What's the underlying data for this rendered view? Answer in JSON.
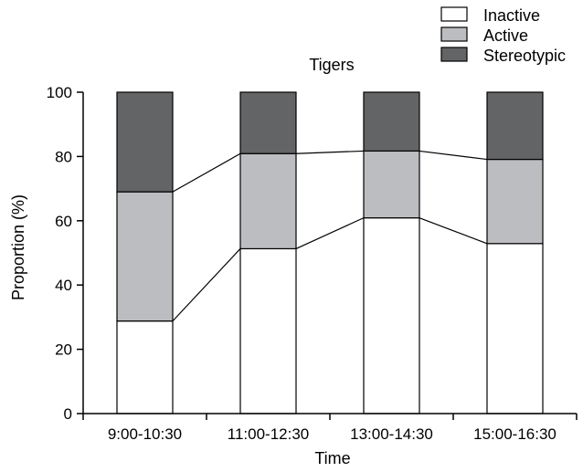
{
  "chart_data": {
    "type": "bar",
    "stacked": true,
    "title": "Tigers",
    "xlabel": "Time",
    "ylabel": "Proportion (%)",
    "ylim": [
      0,
      100
    ],
    "yticks": [
      0,
      20,
      40,
      60,
      80,
      100
    ],
    "categories": [
      "9:00-10:30",
      "11:00-12:30",
      "13:00-14:30",
      "15:00-16:30"
    ],
    "series": [
      {
        "name": "Inactive",
        "values": [
          28.8,
          51.3,
          60.9,
          52.9
        ],
        "color": "#ffffff"
      },
      {
        "name": "Active",
        "values": [
          40.2,
          29.6,
          20.8,
          26.2
        ],
        "color": "#bcbdc0"
      },
      {
        "name": "Stereotypic",
        "values": [
          31.0,
          19.1,
          18.3,
          20.9
        ],
        "color": "#636466"
      }
    ],
    "connector_lines": true,
    "grid": false,
    "legend_position": "top-right"
  }
}
